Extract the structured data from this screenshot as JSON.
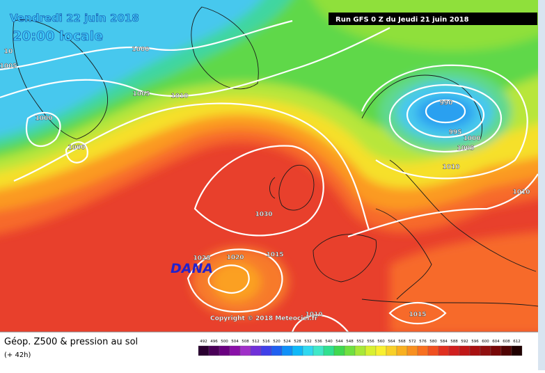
{
  "header": {
    "date": "Vendredi 22 juin 2018",
    "time": "20:00 locale",
    "run": "Run GFS 0 Z du Jeudi 21 juin 2018"
  },
  "map": {
    "isobar_labels": [
      "1005",
      "10",
      "1000",
      "1005",
      "1010",
      "1000",
      "1000",
      "990",
      "995",
      "1000",
      "1005",
      "1010",
      "1010",
      "1030",
      "1025",
      "1020",
      "1015",
      "1010",
      "1015"
    ],
    "annotation": "DANA",
    "copyright": "Copyright © 2018 Meteociel.fr"
  },
  "footer": {
    "title": "Géop. Z500 & pression au sol",
    "lead": "(+ 42h)",
    "scale": [
      492,
      496,
      500,
      504,
      508,
      512,
      516,
      520,
      524,
      528,
      532,
      536,
      540,
      544,
      548,
      552,
      556,
      560,
      564,
      568,
      572,
      576,
      580,
      584,
      588,
      592,
      596,
      600,
      604,
      608,
      612
    ]
  }
}
